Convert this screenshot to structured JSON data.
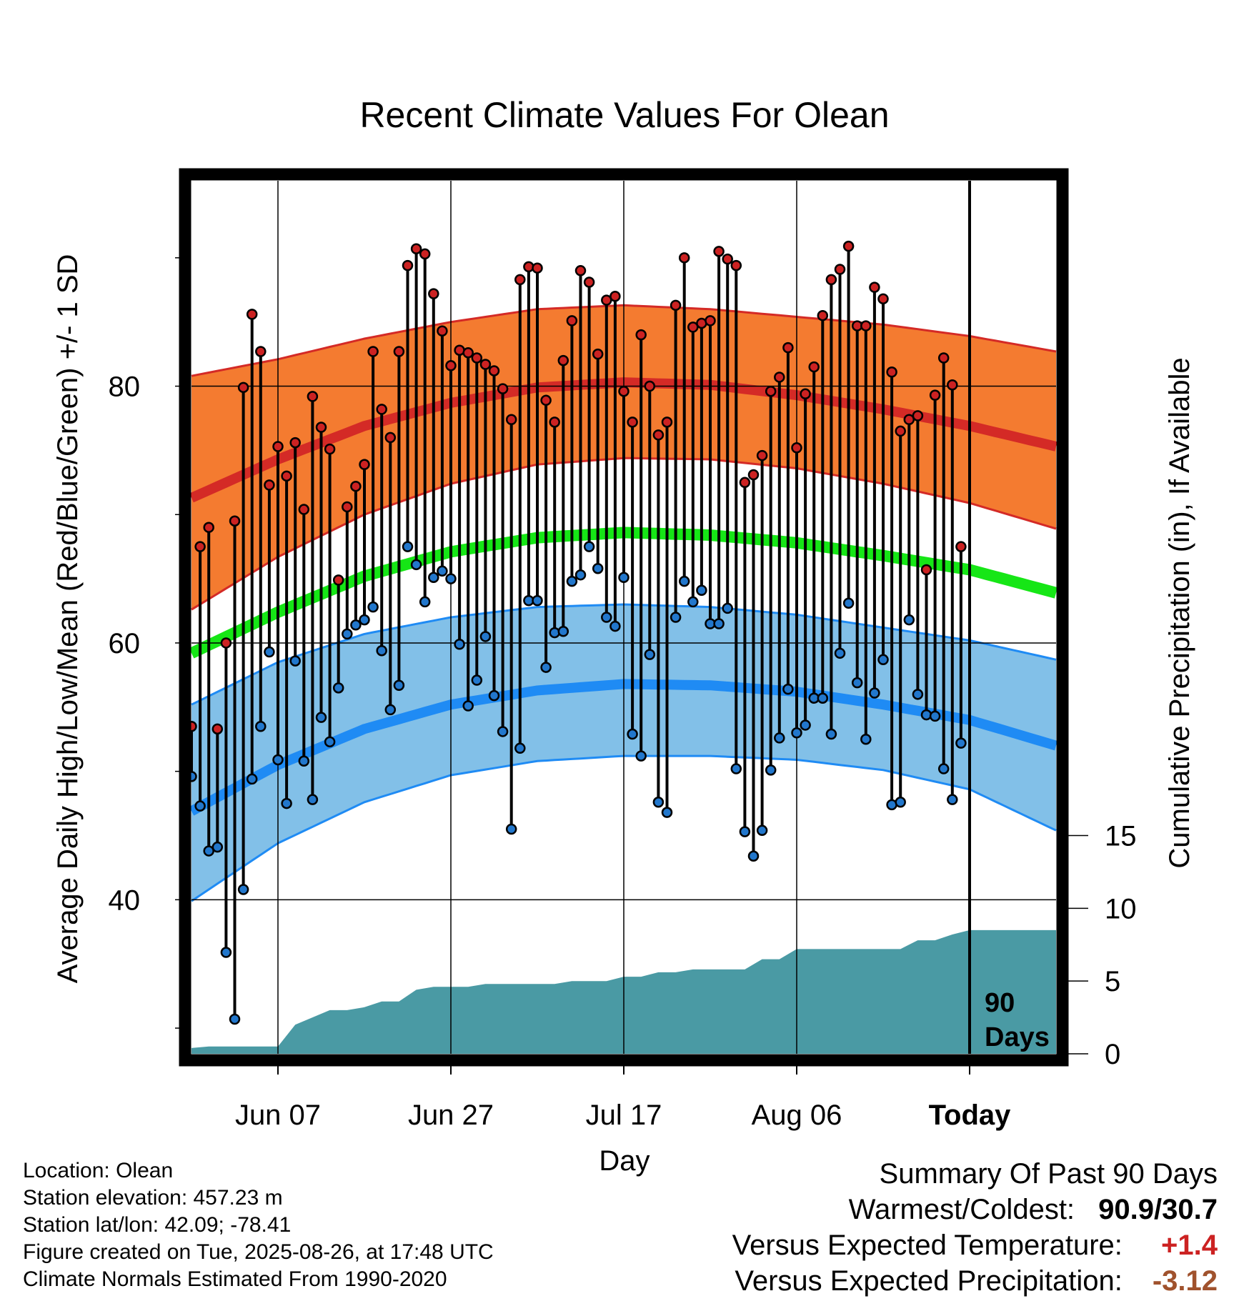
{
  "chart_data": {
    "type": "line",
    "title": "Recent Climate Values For Olean",
    "xlabel": "Day",
    "ylabel": "Average Daily High/Low/Mean (Red/Blue/Green) +/- 1 SD",
    "y2label": "Cumulative Precipitation (in), If Available",
    "x_tick_labels": [
      "Jun 07",
      "Jun 27",
      "Jul 17",
      "Aug 06",
      "Today"
    ],
    "y_tick_labels": [
      "40",
      "60",
      "80"
    ],
    "y2_tick_labels": [
      "0",
      "5",
      "10",
      "15"
    ],
    "ylim": [
      28,
      96
    ],
    "y2lim": [
      0,
      60
    ],
    "x_range_days": [
      -90,
      10
    ],
    "today_marker_label": [
      "90",
      "Days"
    ],
    "colors": {
      "high_band": "#f47b30",
      "high_mean": "#d42a26",
      "low_band": "#82c0e8",
      "low_mean": "#1f8bf4",
      "mean_line": "#16e616",
      "precip_fill": "#4a9aa4",
      "high_marker": "#cc2222",
      "low_marker": "#2277cc"
    },
    "normals": {
      "days": [
        -90,
        -80,
        -70,
        -60,
        -50,
        -40,
        -30,
        -20,
        -10,
        0,
        10
      ],
      "high_mean": [
        71.3,
        74.3,
        76.9,
        78.7,
        79.9,
        80.3,
        80.1,
        79.3,
        78.2,
        76.9,
        75.3
      ],
      "high_upper": [
        80.8,
        82.1,
        83.7,
        85.0,
        86.0,
        86.3,
        86.0,
        85.4,
        84.8,
        83.9,
        82.7
      ],
      "high_lower": [
        62.6,
        66.7,
        70.0,
        72.4,
        73.9,
        74.4,
        74.3,
        73.6,
        72.4,
        70.9,
        68.9
      ],
      "low_mean": [
        46.9,
        50.5,
        53.3,
        55.2,
        56.3,
        56.8,
        56.7,
        56.2,
        55.2,
        54.0,
        52.0
      ],
      "low_upper": [
        55.2,
        58.5,
        60.7,
        62.0,
        62.8,
        63.0,
        62.8,
        62.2,
        61.2,
        60.2,
        58.7
      ],
      "low_lower": [
        39.9,
        44.4,
        47.6,
        49.7,
        50.8,
        51.2,
        51.2,
        50.9,
        50.1,
        48.6,
        45.4
      ],
      "mean": [
        59.2,
        62.4,
        65.2,
        67.1,
        68.2,
        68.6,
        68.4,
        67.8,
        66.8,
        65.7,
        63.9
      ]
    },
    "daily_high": [
      53.5,
      67.5,
      69.0,
      53.3,
      60.0,
      69.5,
      79.9,
      85.6,
      82.7,
      72.3,
      75.3,
      73.0,
      75.6,
      70.4,
      79.2,
      76.8,
      75.1,
      64.9,
      70.6,
      72.2,
      73.9,
      82.7,
      78.2,
      76.0,
      82.7,
      89.4,
      90.7,
      90.3,
      87.2,
      84.3,
      81.6,
      82.8,
      82.6,
      82.2,
      81.7,
      81.2,
      79.8,
      77.4,
      88.3,
      89.3,
      89.2,
      78.9,
      77.2,
      82.0,
      85.1,
      89.0,
      88.1,
      82.5,
      86.7,
      87.0,
      79.6,
      77.2,
      84.0,
      80.0,
      76.2,
      77.2,
      86.3,
      90.0,
      84.6,
      84.9,
      85.1,
      90.5,
      89.9,
      89.4,
      72.5,
      73.1,
      74.6,
      79.6,
      80.7,
      83.0,
      75.2,
      79.4,
      81.5,
      85.5,
      88.3,
      89.1,
      90.9,
      84.7,
      84.7,
      87.7,
      86.8,
      81.1,
      76.5,
      77.4,
      77.7,
      65.7,
      79.3,
      82.2,
      80.1,
      67.5
    ],
    "daily_low": [
      49.6,
      47.3,
      43.8,
      44.1,
      35.9,
      30.7,
      40.8,
      49.4,
      53.5,
      59.3,
      50.9,
      47.5,
      58.6,
      50.8,
      47.8,
      54.2,
      52.3,
      56.5,
      60.7,
      61.4,
      61.8,
      62.8,
      59.4,
      54.8,
      56.7,
      67.5,
      66.1,
      63.2,
      65.1,
      65.6,
      65.0,
      59.9,
      55.1,
      57.1,
      60.5,
      55.9,
      53.1,
      45.5,
      51.8,
      63.3,
      63.3,
      58.1,
      60.8,
      60.9,
      64.8,
      65.3,
      67.5,
      65.8,
      62.0,
      61.3,
      65.1,
      52.9,
      51.2,
      59.1,
      47.6,
      46.8,
      62.0,
      64.8,
      63.2,
      64.1,
      61.5,
      61.5,
      62.7,
      50.2,
      45.3,
      43.4,
      45.4,
      50.1,
      52.6,
      56.4,
      53.0,
      53.6,
      55.7,
      55.7,
      52.9,
      59.2,
      63.1,
      56.9,
      52.5,
      56.1,
      58.7,
      47.4,
      47.6,
      61.8,
      56.0,
      54.4,
      54.3,
      50.2,
      47.8,
      52.2
    ],
    "cumulative_precip": {
      "days": [
        -90,
        -88,
        -85,
        -80,
        -78,
        -74,
        -72,
        -70,
        -68,
        -66,
        -64,
        -62,
        -60,
        -58,
        -56,
        -54,
        -52,
        -50,
        -48,
        -46,
        -44,
        -42,
        -40,
        -38,
        -36,
        -34,
        -32,
        -30,
        -28,
        -26,
        -24,
        -22,
        -20,
        -18,
        -16,
        -14,
        -12,
        -10,
        -8,
        -6,
        -4,
        -2,
        0,
        10
      ],
      "values": [
        0.4,
        0.5,
        0.5,
        0.5,
        2.0,
        3.0,
        3.0,
        3.2,
        3.6,
        3.6,
        4.4,
        4.6,
        4.6,
        4.6,
        4.8,
        4.8,
        4.8,
        4.8,
        4.8,
        5.0,
        5.0,
        5.0,
        5.3,
        5.3,
        5.6,
        5.6,
        5.8,
        5.8,
        5.8,
        5.8,
        6.5,
        6.5,
        7.2,
        7.2,
        7.2,
        7.2,
        7.2,
        7.2,
        7.2,
        7.8,
        7.8,
        8.2,
        8.5,
        8.5
      ]
    }
  },
  "footer": {
    "location": "Location: Olean",
    "elevation": "Station elevation: 457.23 m",
    "latlon": "Station lat/lon: 42.09; -78.41",
    "created": "Figure created on Tue, 2025-08-26, at 17:48 UTC",
    "normals": "Climate Normals Estimated From 1990-2020"
  },
  "summary": {
    "heading": "Summary Of Past 90 Days",
    "warm_cold_label": "Warmest/Coldest:",
    "warm_cold_value": "90.9/30.7",
    "temp_label": "Versus Expected Temperature:",
    "temp_value": "+1.4",
    "temp_color": "#cc2222",
    "precip_label": "Versus Expected Precipitation:",
    "precip_value": "-3.12",
    "precip_color": "#a0522d"
  }
}
